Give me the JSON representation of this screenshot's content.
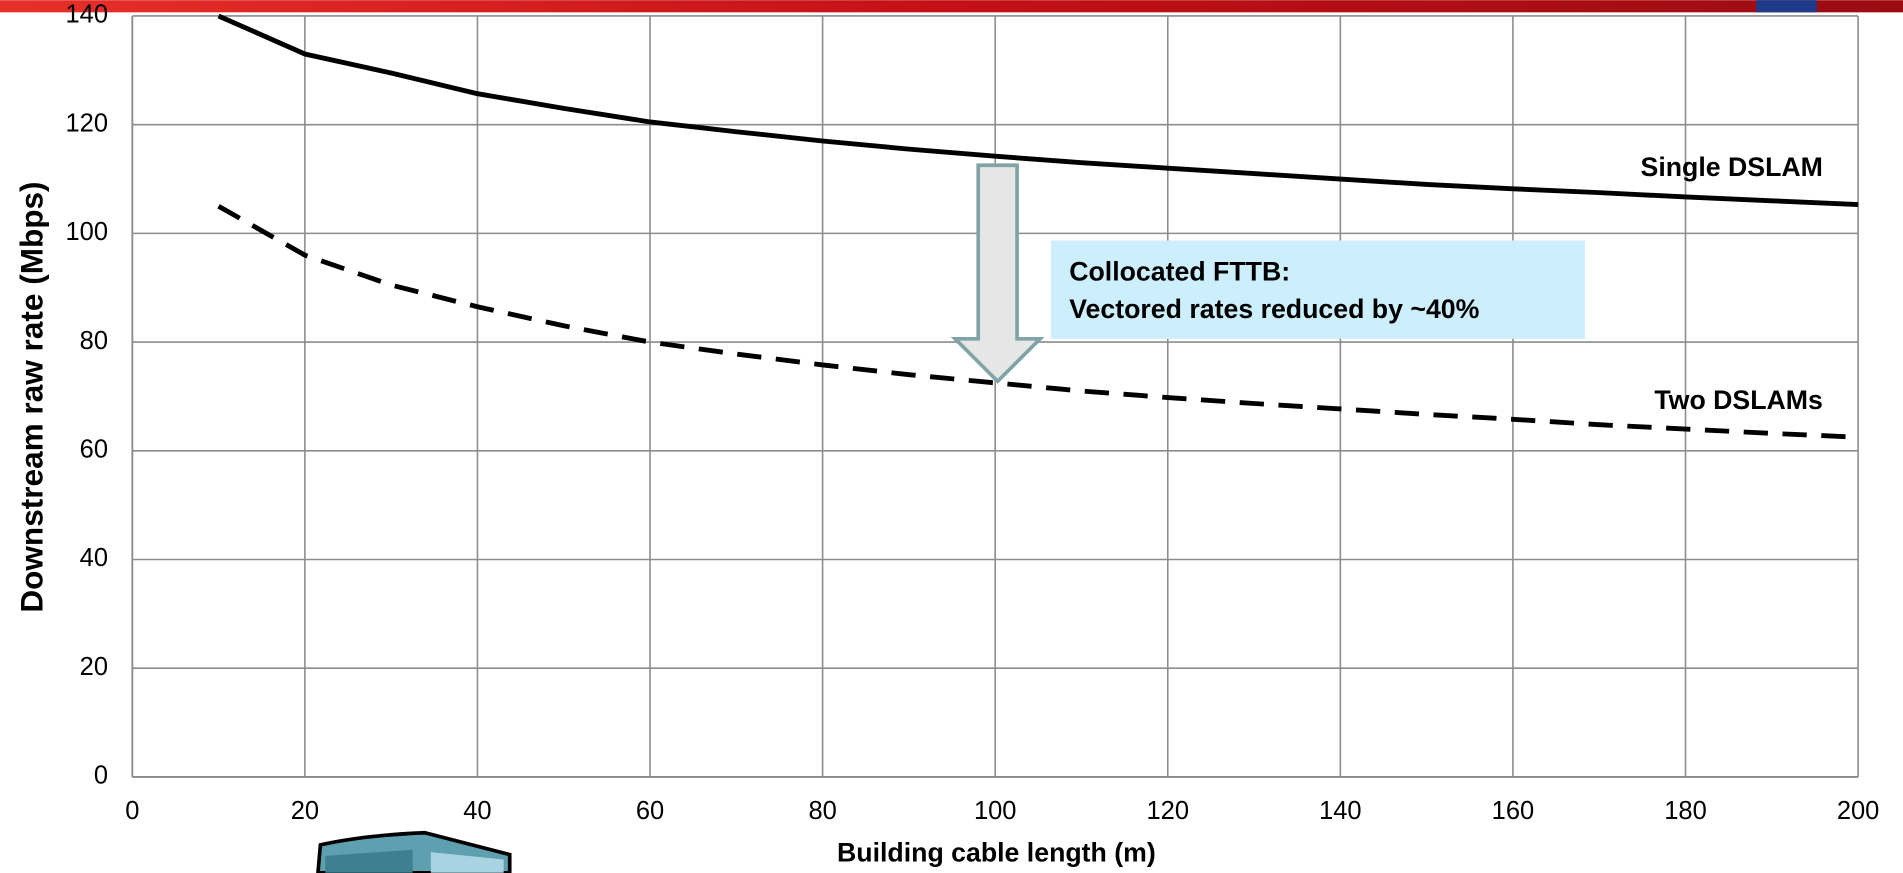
{
  "chart_data": {
    "type": "line",
    "x_label": "Building cable length (m)",
    "y_label": "Downstream raw rate (Mbps)",
    "x": [
      10,
      20,
      30,
      40,
      50,
      60,
      70,
      80,
      90,
      100,
      110,
      120,
      130,
      140,
      150,
      160,
      170,
      180,
      190,
      200
    ],
    "series": [
      {
        "name": "Single DSLAM",
        "color": "#000000",
        "dashed": false,
        "values": [
          140,
          133,
          129.5,
          125.7,
          123,
          120.5,
          118.7,
          117,
          115.5,
          114.2,
          113,
          112,
          111,
          110,
          109,
          108.2,
          107.5,
          106.7,
          106,
          105.3
        ]
      },
      {
        "name": "Two DSLAMs",
        "color": "#000000",
        "dashed": true,
        "values": [
          105,
          96,
          90.5,
          86.5,
          83,
          80,
          77.8,
          75.8,
          74,
          72.5,
          71,
          69.8,
          68.7,
          67.7,
          66.7,
          65.8,
          64.8,
          64,
          63.2,
          62.5
        ]
      }
    ],
    "annotation": [
      "Collocated FTTB:",
      "Vectored rates reduced by ~40%"
    ],
    "xlim": [
      0,
      200
    ],
    "xticks": [
      0,
      20,
      40,
      60,
      80,
      100,
      120,
      140,
      160,
      180,
      200
    ],
    "ylim": [
      0,
      140
    ],
    "yticks": [
      0,
      20,
      40,
      60,
      80,
      100,
      120,
      140
    ],
    "grid": true
  }
}
